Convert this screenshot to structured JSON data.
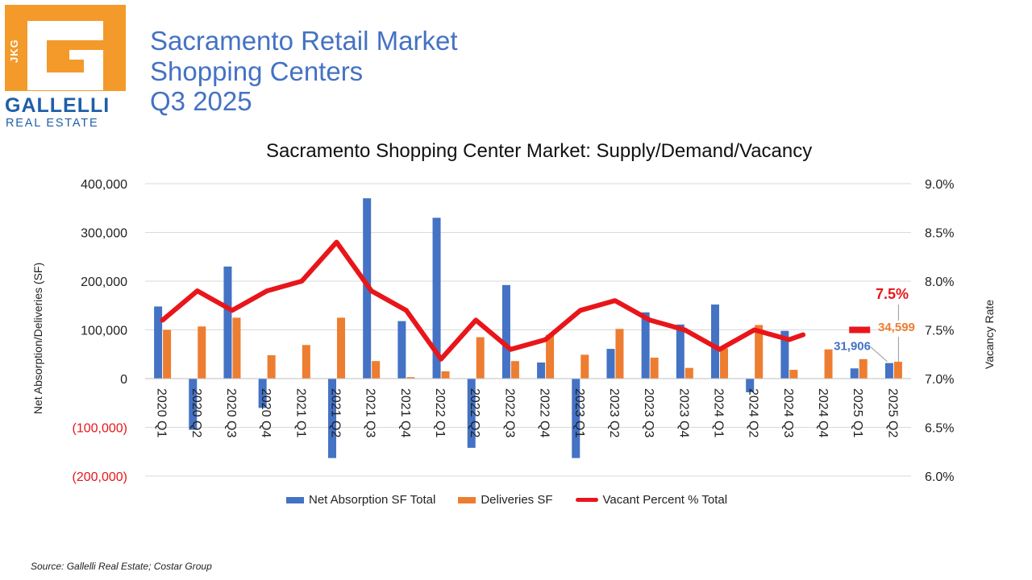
{
  "header": {
    "line1": "Sacramento Retail Market",
    "line2": "Shopping Centers",
    "line3": "Q3 2025"
  },
  "logo": {
    "badge": "JKG",
    "name": "GALLELLI",
    "sub": "REAL ESTATE"
  },
  "source": "Source: Gallelli Real Estate; Costar Group",
  "colors": {
    "absorption": "#4472c4",
    "deliveries": "#ed7d31",
    "vacancy": "#e8161b",
    "title_blue": "#4472c4",
    "negative_label": "#e8161b"
  },
  "chart_data": {
    "type": "bar",
    "title": "Sacramento Shopping Center Market: Supply/Demand/Vacancy",
    "ylabel": "Net Absorption/Deliveries (SF)",
    "y2label": "Vacancy Rate",
    "ylim": [
      -200000,
      400000
    ],
    "y2lim": [
      6.0,
      9.0
    ],
    "yticks": [
      "400,000",
      "300,000",
      "200,000",
      "100,000",
      "0",
      "(100,000)",
      "(200,000)"
    ],
    "y2ticks": [
      "9.0%",
      "8.5%",
      "8.0%",
      "7.5%",
      "7.0%",
      "6.5%",
      "6.0%"
    ],
    "categories": [
      "2020 Q1",
      "2020 Q2",
      "2020 Q3",
      "2020 Q4",
      "2021 Q1",
      "2021 Q2",
      "2021 Q3",
      "2021 Q4",
      "2022 Q1",
      "2022 Q2",
      "2022 Q3",
      "2022 Q4",
      "2023 Q1",
      "2023 Q2",
      "2023 Q3",
      "2023 Q4",
      "2024 Q1",
      "2024 Q2",
      "2024 Q3",
      "2024 Q4",
      "2025 Q1",
      "2025 Q2"
    ],
    "series": [
      {
        "name": "Net Absorption SF Total",
        "axis": "left",
        "kind": "bar",
        "values": [
          148000,
          -105000,
          230000,
          -60000,
          0,
          -163000,
          370000,
          118000,
          330000,
          -142000,
          192000,
          33000,
          -163000,
          61000,
          136000,
          111000,
          152000,
          -28000,
          98000,
          0,
          21000,
          31906
        ]
      },
      {
        "name": "Deliveries SF",
        "axis": "left",
        "kind": "bar",
        "values": [
          100000,
          107000,
          125000,
          48000,
          69000,
          125000,
          36000,
          3000,
          15000,
          85000,
          36000,
          90000,
          49000,
          102000,
          43000,
          22000,
          62000,
          110000,
          18000,
          60000,
          40000,
          34599
        ]
      },
      {
        "name": "Vacant Percent % Total",
        "axis": "right",
        "kind": "line",
        "values": [
          7.6,
          7.9,
          7.7,
          7.9,
          8.0,
          8.4,
          7.9,
          7.7,
          7.2,
          7.6,
          7.3,
          7.4,
          7.7,
          7.8,
          7.6,
          7.5,
          7.3,
          7.5,
          7.4,
          7.45,
          7.5,
          7.5
        ]
      }
    ],
    "annotations": {
      "absorption_last": "31,906",
      "deliveries_last": "34,599",
      "vacancy_last": "7.5%"
    },
    "legend_position": "bottom"
  }
}
